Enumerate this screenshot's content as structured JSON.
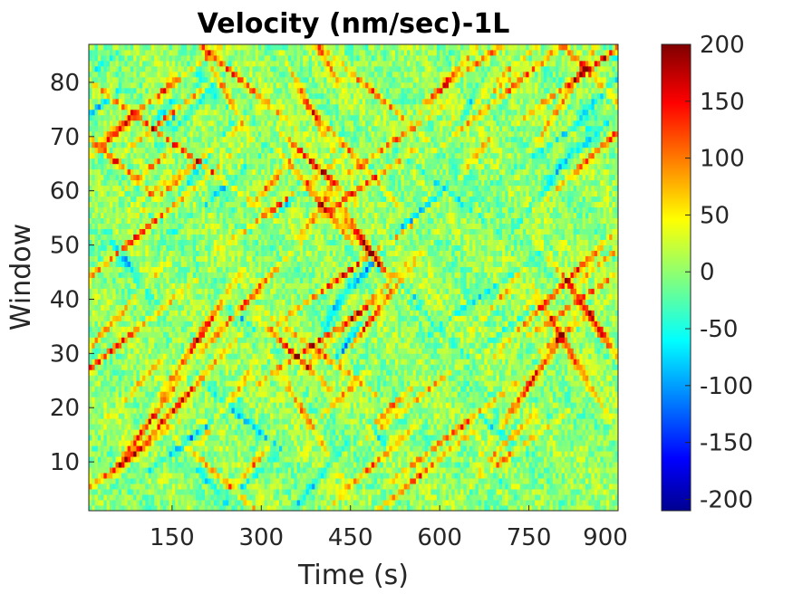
{
  "chart_data": {
    "type": "heatmap",
    "title": "Velocity (nm/sec)-1L",
    "xlabel": "Time (s)",
    "ylabel": "Window",
    "xlim": [
      10,
      900
    ],
    "ylim": [
      1,
      87
    ],
    "x_ticks": [
      150,
      300,
      450,
      600,
      750,
      900
    ],
    "y_ticks": [
      10,
      20,
      30,
      40,
      50,
      60,
      70,
      80
    ],
    "colormap": "jet",
    "colorbar": {
      "min": -210,
      "max": 200,
      "ticks": [
        200,
        150,
        100,
        50,
        0,
        -50,
        -100,
        -150,
        -200
      ]
    },
    "grid": false,
    "colors": {
      "jet_stops": [
        "#00008f",
        "#0000ff",
        "#00ffff",
        "#ffff00",
        "#ff0000",
        "#800000"
      ]
    }
  }
}
